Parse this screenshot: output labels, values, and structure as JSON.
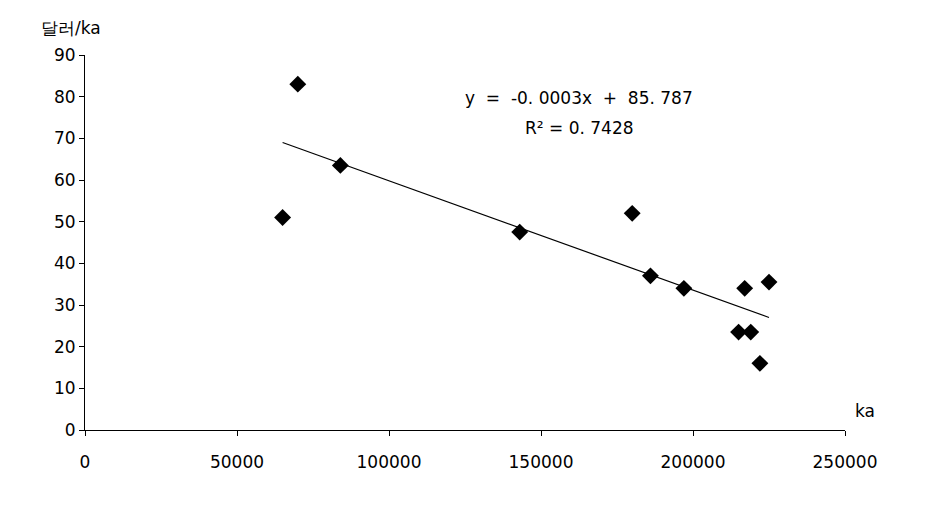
{
  "chart_data": {
    "type": "scatter",
    "y_label": "달러/ka",
    "x_label": "ka",
    "annotations": [
      "y  =  -0. 0003x  +  85. 787",
      "R² = 0. 7428"
    ],
    "series": [
      {
        "type": "scatter",
        "marker": "diamond",
        "color": "#000000",
        "x": [
          65000,
          70000,
          84000,
          143000,
          180000,
          186000,
          197000,
          215000,
          217000,
          219000,
          222000,
          225000
        ],
        "values": [
          51,
          83,
          63.5,
          47.5,
          52,
          37,
          34,
          23.5,
          34,
          23.5,
          16,
          35.5
        ]
      },
      {
        "type": "line",
        "line_style": "solid",
        "color": "#000000",
        "x": [
          65000,
          225000
        ],
        "values": [
          69,
          27
        ]
      }
    ],
    "xlim": [
      0,
      250000
    ],
    "xticks": [
      0,
      50000,
      100000,
      150000,
      200000,
      250000
    ],
    "ylim": [
      0,
      90
    ],
    "yticks": [
      0,
      10,
      20,
      30,
      40,
      50,
      60,
      70,
      80,
      90
    ],
    "grid": false
  }
}
